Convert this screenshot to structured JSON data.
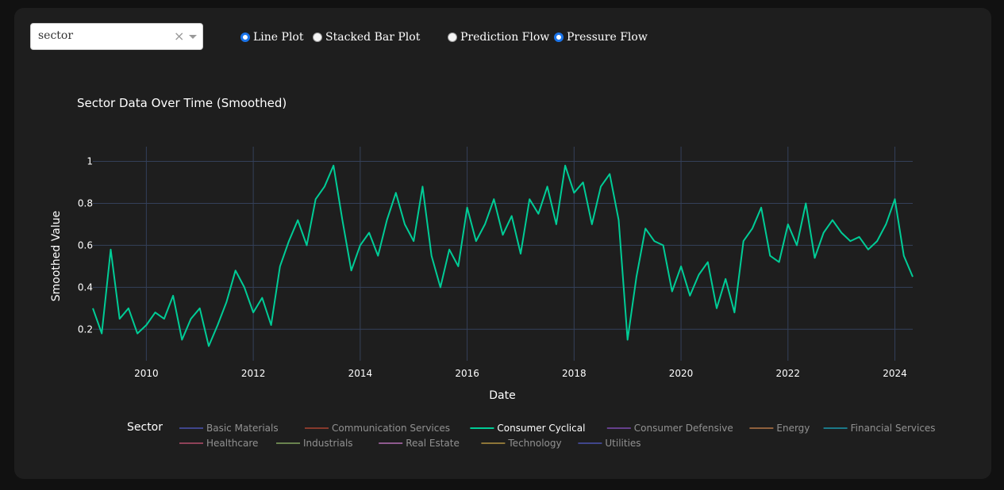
{
  "controls": {
    "dropdown_value": "sector",
    "plot_type_options": [
      {
        "label": "Line Plot",
        "checked": true
      },
      {
        "label": "Stacked Bar Plot",
        "checked": false
      }
    ],
    "flow_options": [
      {
        "label": "Prediction Flow",
        "checked": false
      },
      {
        "label": "Pressure Flow",
        "checked": true
      }
    ]
  },
  "colors": {
    "background": "#1e1e1e",
    "grid": "#34405a",
    "active_series": "#00cc96"
  },
  "chart_data": {
    "type": "line",
    "title": "Sector Data Over Time (Smoothed)",
    "xlabel": "Date",
    "ylabel": "Smoothed Value",
    "xlim": [
      "2009-01-01",
      "2024-05-01"
    ],
    "ylim": [
      0.05,
      1.07
    ],
    "x_ticks": [
      "2010",
      "2012",
      "2014",
      "2016",
      "2018",
      "2020",
      "2022",
      "2024"
    ],
    "y_ticks": [
      "0.2",
      "0.4",
      "0.6",
      "0.8",
      "1"
    ],
    "grid": true,
    "legend_title": "Sector",
    "legend_position": "bottom",
    "series": [
      {
        "name": "Basic Materials",
        "color": "#636efa",
        "visible": false
      },
      {
        "name": "Communication Services",
        "color": "#ef553b",
        "visible": false
      },
      {
        "name": "Consumer Cyclical",
        "color": "#00cc96",
        "visible": true,
        "x": [
          "2009-01",
          "2009-03",
          "2009-05",
          "2009-07",
          "2009-09",
          "2009-11",
          "2010-01",
          "2010-03",
          "2010-05",
          "2010-07",
          "2010-09",
          "2010-11",
          "2011-01",
          "2011-03",
          "2011-05",
          "2011-07",
          "2011-09",
          "2011-11",
          "2012-01",
          "2012-03",
          "2012-05",
          "2012-07",
          "2012-09",
          "2012-11",
          "2013-01",
          "2013-03",
          "2013-05",
          "2013-07",
          "2013-09",
          "2013-11",
          "2014-01",
          "2014-03",
          "2014-05",
          "2014-07",
          "2014-09",
          "2014-11",
          "2015-01",
          "2015-03",
          "2015-05",
          "2015-07",
          "2015-09",
          "2015-11",
          "2016-01",
          "2016-03",
          "2016-05",
          "2016-07",
          "2016-09",
          "2016-11",
          "2017-01",
          "2017-03",
          "2017-05",
          "2017-07",
          "2017-09",
          "2017-11",
          "2018-01",
          "2018-03",
          "2018-05",
          "2018-07",
          "2018-09",
          "2018-11",
          "2019-01",
          "2019-03",
          "2019-05",
          "2019-07",
          "2019-09",
          "2019-11",
          "2020-01",
          "2020-03",
          "2020-05",
          "2020-07",
          "2020-09",
          "2020-11",
          "2021-01",
          "2021-03",
          "2021-05",
          "2021-07",
          "2021-09",
          "2021-11",
          "2022-01",
          "2022-03",
          "2022-05",
          "2022-07",
          "2022-09",
          "2022-11",
          "2023-01",
          "2023-03",
          "2023-05",
          "2023-07",
          "2023-09",
          "2023-11",
          "2024-01",
          "2024-03",
          "2024-05"
        ],
        "values": [
          0.3,
          0.18,
          0.58,
          0.25,
          0.3,
          0.18,
          0.22,
          0.28,
          0.25,
          0.36,
          0.15,
          0.25,
          0.3,
          0.12,
          0.22,
          0.33,
          0.48,
          0.4,
          0.28,
          0.35,
          0.22,
          0.5,
          0.62,
          0.72,
          0.6,
          0.82,
          0.88,
          0.98,
          0.72,
          0.48,
          0.6,
          0.66,
          0.55,
          0.72,
          0.85,
          0.7,
          0.62,
          0.88,
          0.55,
          0.4,
          0.58,
          0.5,
          0.78,
          0.62,
          0.7,
          0.82,
          0.65,
          0.74,
          0.56,
          0.82,
          0.75,
          0.88,
          0.7,
          0.98,
          0.85,
          0.9,
          0.7,
          0.88,
          0.94,
          0.72,
          0.15,
          0.45,
          0.68,
          0.62,
          0.6,
          0.38,
          0.5,
          0.36,
          0.46,
          0.52,
          0.3,
          0.44,
          0.28,
          0.62,
          0.68,
          0.78,
          0.55,
          0.52,
          0.7,
          0.6,
          0.8,
          0.54,
          0.66,
          0.72,
          0.66,
          0.62,
          0.64,
          0.58,
          0.62,
          0.7,
          0.82,
          0.55,
          0.45
        ]
      },
      {
        "name": "Consumer Defensive",
        "color": "#ab63fa",
        "visible": false
      },
      {
        "name": "Energy",
        "color": "#ffa15a",
        "visible": false
      },
      {
        "name": "Financial Services",
        "color": "#19d3f3",
        "visible": false
      },
      {
        "name": "Healthcare",
        "color": "#ff6692",
        "visible": false
      },
      {
        "name": "Industrials",
        "color": "#b6e880",
        "visible": false
      },
      {
        "name": "Real Estate",
        "color": "#ff97ff",
        "visible": false
      },
      {
        "name": "Technology",
        "color": "#fecb52",
        "visible": false
      },
      {
        "name": "Utilities",
        "color": "#636efa",
        "visible": false
      }
    ]
  }
}
